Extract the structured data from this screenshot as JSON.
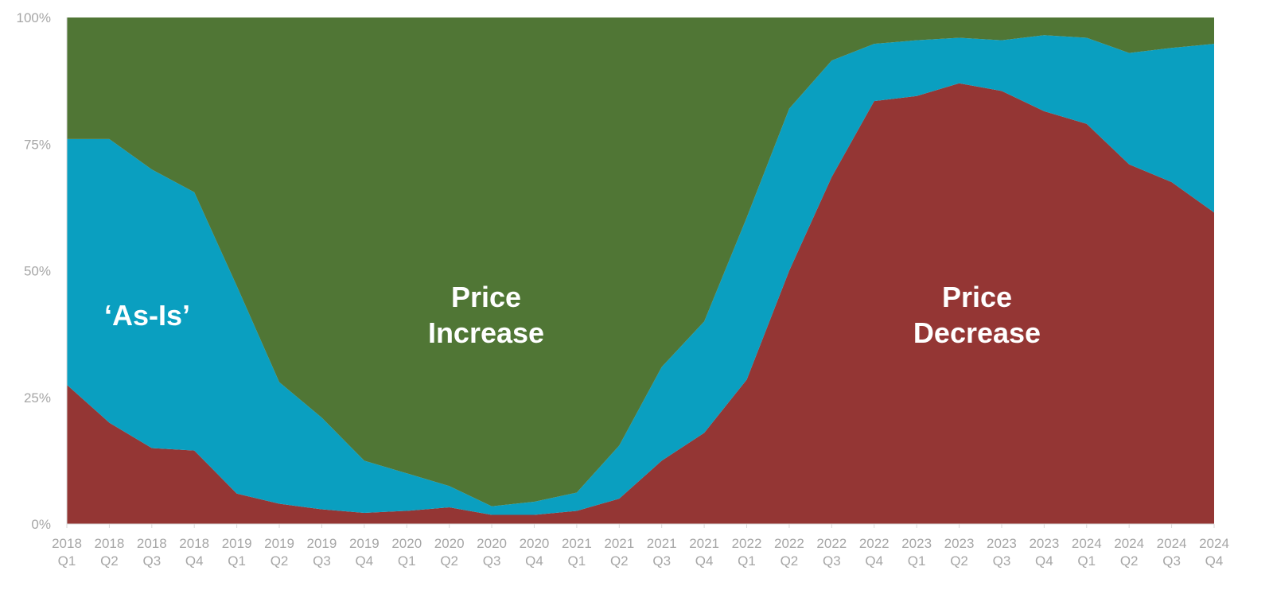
{
  "chart_data": {
    "type": "area",
    "stacked": "percent",
    "categories": [
      [
        "2018",
        "Q1"
      ],
      [
        "2018",
        "Q2"
      ],
      [
        "2018",
        "Q3"
      ],
      [
        "2018",
        "Q4"
      ],
      [
        "2019",
        "Q1"
      ],
      [
        "2019",
        "Q2"
      ],
      [
        "2019",
        "Q3"
      ],
      [
        "2019",
        "Q4"
      ],
      [
        "2020",
        "Q1"
      ],
      [
        "2020",
        "Q2"
      ],
      [
        "2020",
        "Q3"
      ],
      [
        "2020",
        "Q4"
      ],
      [
        "2021",
        "Q1"
      ],
      [
        "2021",
        "Q2"
      ],
      [
        "2021",
        "Q3"
      ],
      [
        "2021",
        "Q4"
      ],
      [
        "2022",
        "Q1"
      ],
      [
        "2022",
        "Q2"
      ],
      [
        "2022",
        "Q3"
      ],
      [
        "2022",
        "Q4"
      ],
      [
        "2023",
        "Q1"
      ],
      [
        "2023",
        "Q2"
      ],
      [
        "2023",
        "Q3"
      ],
      [
        "2023",
        "Q4"
      ],
      [
        "2024",
        "Q1"
      ],
      [
        "2024",
        "Q2"
      ],
      [
        "2024",
        "Q3"
      ],
      [
        "2024",
        "Q4"
      ]
    ],
    "y_ticks": [
      "0%",
      "25%",
      "50%",
      "75%",
      "100%"
    ],
    "ylim": [
      0,
      100
    ],
    "grid": false,
    "legend": "none",
    "series": [
      {
        "name": "Price Decrease",
        "label_lines": [
          "Price",
          "Decrease"
        ],
        "color": "#943634",
        "values": [
          27.5,
          20,
          15,
          14.5,
          6,
          4,
          2.9,
          2.2,
          2.6,
          3.3,
          1.8,
          1.8,
          2.6,
          5,
          12.5,
          18,
          28.5,
          50,
          68.5,
          83.5,
          84.5,
          87,
          85.5,
          81.5,
          79,
          71,
          67.5,
          61.5
        ]
      },
      {
        "name": "'As-Is'",
        "label_lines": [
          "‘As-Is’"
        ],
        "color": "#0a9fc0",
        "values": [
          48.5,
          56,
          55,
          51,
          41,
          24,
          18.1,
          10.3,
          7.4,
          4.2,
          1.7,
          2.6,
          3.6,
          10.5,
          18.5,
          22,
          32,
          32,
          23,
          11.3,
          11,
          9,
          10,
          15,
          17,
          22,
          26.5,
          33.3
        ]
      },
      {
        "name": "Price Increase",
        "label_lines": [
          "Price",
          "Increase"
        ],
        "color": "#507635",
        "values": [
          24,
          24,
          30,
          34.5,
          53,
          72,
          79,
          87.5,
          90,
          92.5,
          96.5,
          95.6,
          93.8,
          84.5,
          69,
          60,
          39.5,
          18,
          8.5,
          5.2,
          4.5,
          4,
          4.5,
          3.5,
          4,
          7,
          6,
          5.2
        ]
      }
    ]
  }
}
